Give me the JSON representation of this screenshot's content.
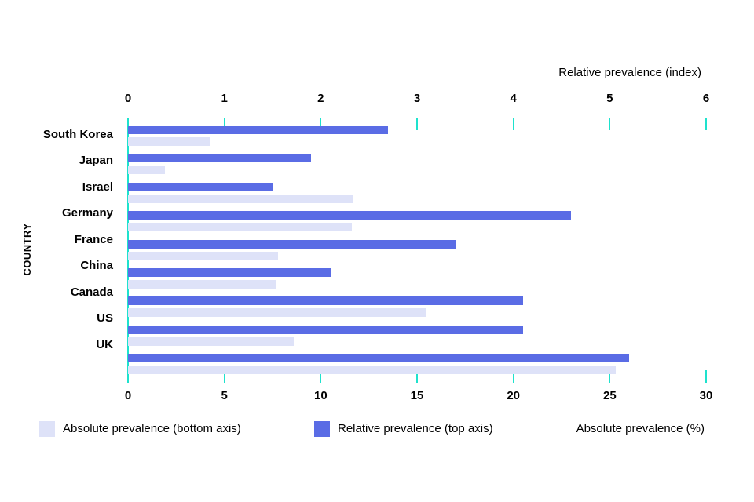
{
  "chart_data": {
    "type": "bar",
    "orientation": "horizontal",
    "ylabel": "COUNTRY",
    "categories": [
      "South Korea",
      "Japan",
      "Israel",
      "Germany",
      "France",
      "China",
      "Canada",
      "US",
      "UK"
    ],
    "series": [
      {
        "name": "Relative prevalence (top axis)",
        "axis": "top",
        "color": "#5a6ce5",
        "values": [
          2.7,
          1.9,
          1.5,
          4.6,
          3.4,
          2.1,
          4.1,
          4.1,
          5.2
        ]
      },
      {
        "name": "Absolute prevalence (bottom axis)",
        "axis": "bottom",
        "color": "#dee2f8",
        "values": [
          4.3,
          1.9,
          11.7,
          11.6,
          7.8,
          7.7,
          15.5,
          8.6,
          25.3
        ]
      }
    ],
    "top_axis": {
      "title": "Relative prevalence (index)",
      "min": 0,
      "max": 6,
      "ticks": [
        0,
        1,
        2,
        3,
        4,
        5,
        6
      ]
    },
    "bottom_axis": {
      "title": "Absolute prevalence (%)",
      "min": 0,
      "max": 30,
      "ticks": [
        0,
        5,
        10,
        15,
        20,
        25,
        30
      ]
    },
    "tick_color": "#1ee2cd",
    "grid": false,
    "legend_position": "bottom",
    "legend": [
      {
        "label": "Absolute prevalence (bottom axis)",
        "series": "absolute"
      },
      {
        "label": "Relative prevalence (top axis)",
        "series": "relative"
      }
    ]
  }
}
